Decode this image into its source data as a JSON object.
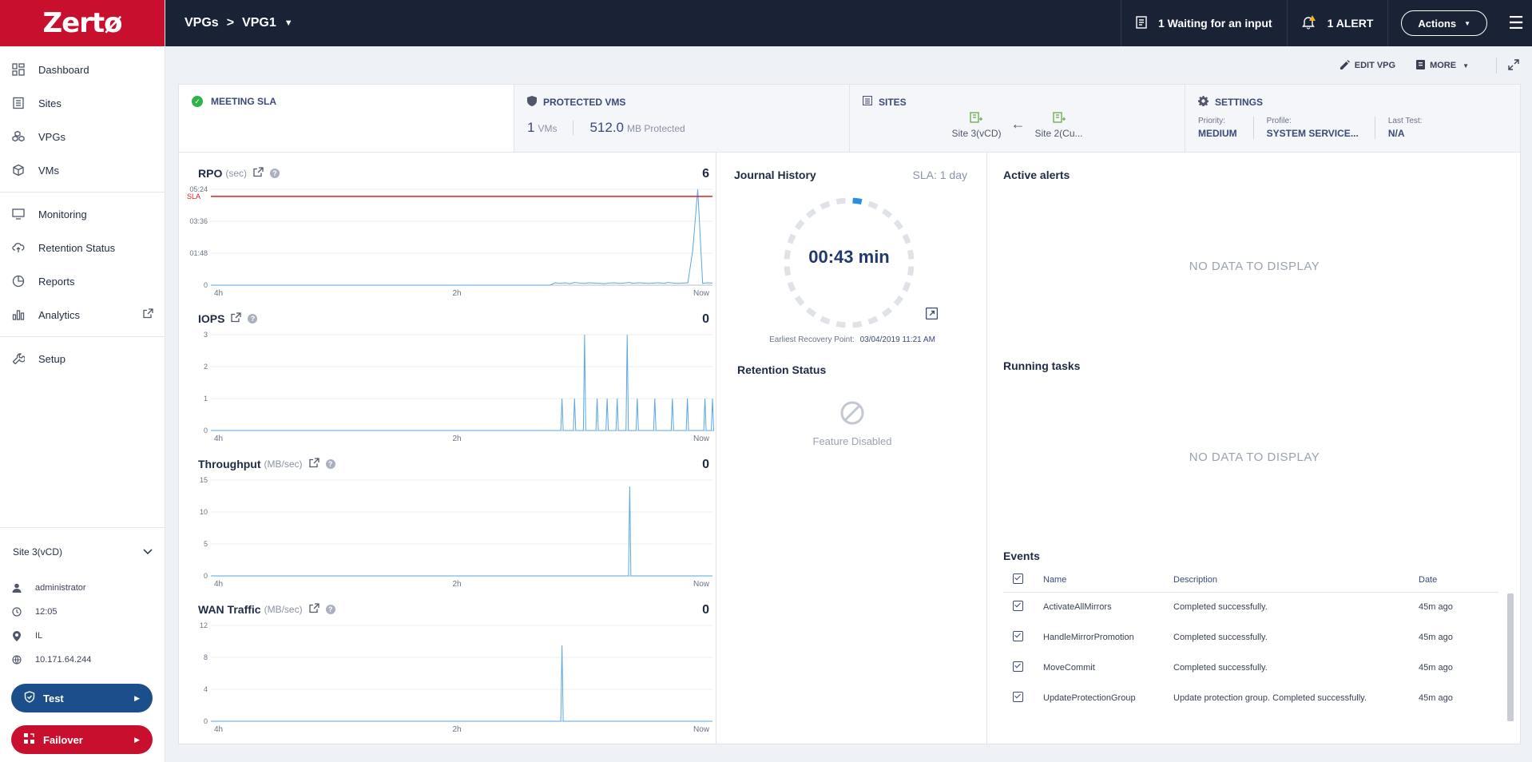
{
  "app": {
    "logo": "Zertø"
  },
  "sidebar": {
    "items": [
      {
        "label": "Dashboard",
        "icon": "dashboard-icon"
      },
      {
        "label": "Sites",
        "icon": "sites-icon"
      },
      {
        "label": "VPGs",
        "icon": "vpgs-icon"
      },
      {
        "label": "VMs",
        "icon": "vms-icon"
      },
      {
        "label": "Monitoring",
        "icon": "monitor-icon"
      },
      {
        "label": "Retention Status",
        "icon": "cloud-upload-icon"
      },
      {
        "label": "Reports",
        "icon": "pie-icon"
      },
      {
        "label": "Analytics",
        "icon": "bar-chart-icon"
      },
      {
        "label": "Setup",
        "icon": "wrench-icon"
      }
    ],
    "site": "Site 3(vCD)",
    "user": "administrator",
    "time": "12:05",
    "location": "IL",
    "ip": "10.171.64.244",
    "test_label": "Test",
    "failover_label": "Failover"
  },
  "topbar": {
    "crumb_root": "VPGs",
    "crumb_sep": ">",
    "crumb_current": "VPG1",
    "waiting": "1 Waiting for an input",
    "alert": "1 ALERT",
    "actions": "Actions"
  },
  "toolbar": {
    "edit": "EDIT VPG",
    "more": "MORE"
  },
  "summary": {
    "sla": "MEETING SLA",
    "protected_title": "PROTECTED VMS",
    "vm_count": "1",
    "vm_unit": "VMs",
    "size": "512.0",
    "size_unit": "MB Protected",
    "sites_title": "SITES",
    "site_from": "Site 3(vCD)",
    "site_to": "Site 2(Cu...",
    "settings_title": "SETTINGS",
    "priority_label": "Priority:",
    "priority": "MEDIUM",
    "profile_label": "Profile:",
    "profile": "SYSTEM SERVICE...",
    "lasttest_label": "Last Test:",
    "lasttest": "N/A"
  },
  "chart_data": [
    {
      "type": "line",
      "title": "RPO",
      "unit": "(sec)",
      "current": "6",
      "x_ticks": [
        "4h",
        "2h",
        "Now"
      ],
      "y_ticks": [
        "0",
        "01:48",
        "03:36",
        "05:24"
      ],
      "sla_label": "SLA",
      "ylim": [
        0,
        324
      ],
      "sla_value": 300,
      "values": [
        0,
        0,
        0,
        0,
        0,
        0,
        0,
        0,
        0,
        0,
        0,
        0,
        0,
        0,
        0,
        0,
        0,
        0,
        0,
        0,
        0,
        0,
        0,
        0,
        0,
        0,
        0,
        0,
        0,
        0,
        0,
        0,
        0,
        0,
        0,
        0,
        0,
        0,
        0,
        0,
        0,
        0,
        0,
        0,
        0,
        0,
        0,
        0,
        0,
        0,
        0,
        0,
        0,
        0,
        0,
        0,
        0,
        0,
        0,
        0,
        0,
        0,
        0,
        0,
        0,
        0,
        0,
        0,
        0,
        0,
        8,
        6,
        8,
        5,
        9,
        7,
        6,
        8,
        7,
        6,
        5,
        7,
        8,
        6,
        7,
        9,
        6,
        8,
        7,
        6,
        7,
        8,
        6,
        9,
        7,
        6,
        7,
        8,
        120,
        330,
        6,
        8,
        7
      ]
    },
    {
      "type": "line",
      "title": "IOPS",
      "unit": "",
      "current": "0",
      "x_ticks": [
        "4h",
        "2h",
        "Now"
      ],
      "y_ticks": [
        "0",
        "1",
        "2",
        "3"
      ],
      "ylim": [
        0,
        3
      ],
      "spikes": [
        {
          "x": 0.7,
          "v": 1
        },
        {
          "x": 0.725,
          "v": 1
        },
        {
          "x": 0.745,
          "v": 3
        },
        {
          "x": 0.77,
          "v": 1
        },
        {
          "x": 0.79,
          "v": 1
        },
        {
          "x": 0.81,
          "v": 1
        },
        {
          "x": 0.83,
          "v": 3
        },
        {
          "x": 0.85,
          "v": 1
        },
        {
          "x": 0.885,
          "v": 1
        },
        {
          "x": 0.92,
          "v": 1
        },
        {
          "x": 0.95,
          "v": 1
        },
        {
          "x": 0.985,
          "v": 1
        },
        {
          "x": 1.0,
          "v": 1
        }
      ]
    },
    {
      "type": "line",
      "title": "Throughput",
      "unit": "(MB/sec)",
      "current": "0",
      "x_ticks": [
        "4h",
        "2h",
        "Now"
      ],
      "y_ticks": [
        "0",
        "5",
        "10",
        "15"
      ],
      "ylim": [
        0,
        15
      ],
      "spikes": [
        {
          "x": 0.835,
          "v": 14
        }
      ]
    },
    {
      "type": "line",
      "title": "WAN Traffic",
      "unit": "(MB/sec)",
      "current": "0",
      "x_ticks": [
        "4h",
        "2h",
        "Now"
      ],
      "y_ticks": [
        "0",
        "4",
        "8",
        "12"
      ],
      "ylim": [
        0,
        12
      ],
      "spikes": [
        {
          "x": 0.7,
          "v": 9.5
        }
      ]
    }
  ],
  "journal": {
    "title": "Journal History",
    "sla": "SLA: 1 day",
    "value": "00:43 min",
    "progress": 0.04,
    "erp_label": "Earliest Recovery Point:",
    "erp_value": "03/04/2019 11:21 AM"
  },
  "retention": {
    "title": "Retention Status",
    "status": "Feature Disabled"
  },
  "alerts": {
    "title": "Active alerts",
    "empty": "NO DATA TO DISPLAY"
  },
  "tasks": {
    "title": "Running tasks",
    "empty": "NO DATA TO DISPLAY"
  },
  "events": {
    "title": "Events",
    "columns": [
      "Name",
      "Description",
      "Date"
    ],
    "rows": [
      {
        "name": "ActivateAllMirrors",
        "desc": "Completed successfully.",
        "date": "45m ago"
      },
      {
        "name": "HandleMirrorPromotion",
        "desc": "Completed successfully.",
        "date": "45m ago"
      },
      {
        "name": "MoveCommit",
        "desc": "Completed successfully.",
        "date": "45m ago"
      },
      {
        "name": "UpdateProtectionGroup",
        "desc": "Update protection group. Completed successfully.",
        "date": "45m ago"
      }
    ]
  }
}
